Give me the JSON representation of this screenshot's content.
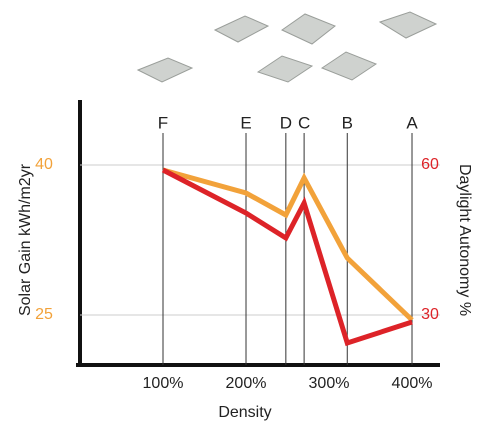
{
  "chart_data": {
    "type": "line",
    "x_label": "Density",
    "y_label": "Solar Gain kWh/m2yr",
    "y2_label": "Daylight Autonomy %",
    "x": [
      100,
      200,
      248,
      270,
      322,
      400
    ],
    "point_labels": [
      "F",
      "E",
      "D",
      "C",
      "B",
      "A"
    ],
    "series": [
      {
        "color": "#f2a23a",
        "values": [
          39.5,
          37.2,
          35,
          38.7,
          30.7,
          24.5
        ]
      },
      {
        "color": "#dd2328",
        "values": [
          59,
          50.4,
          45.4,
          52.4,
          24.4,
          28.6
        ],
        "axis": "y2"
      }
    ],
    "xlim": [
      0,
      433
    ],
    "xticks": [
      {
        "value": 100,
        "label": "100%"
      },
      {
        "value": 200,
        "label": "200%"
      },
      {
        "value": 300,
        "label": "300%"
      },
      {
        "value": 400,
        "label": "400%"
      }
    ],
    "ylim": [
      20,
      46.5
    ],
    "yticks": [
      25,
      40
    ],
    "y2lim": [
      20,
      73
    ],
    "y2ticks": [
      30,
      60
    ],
    "grid": true
  }
}
